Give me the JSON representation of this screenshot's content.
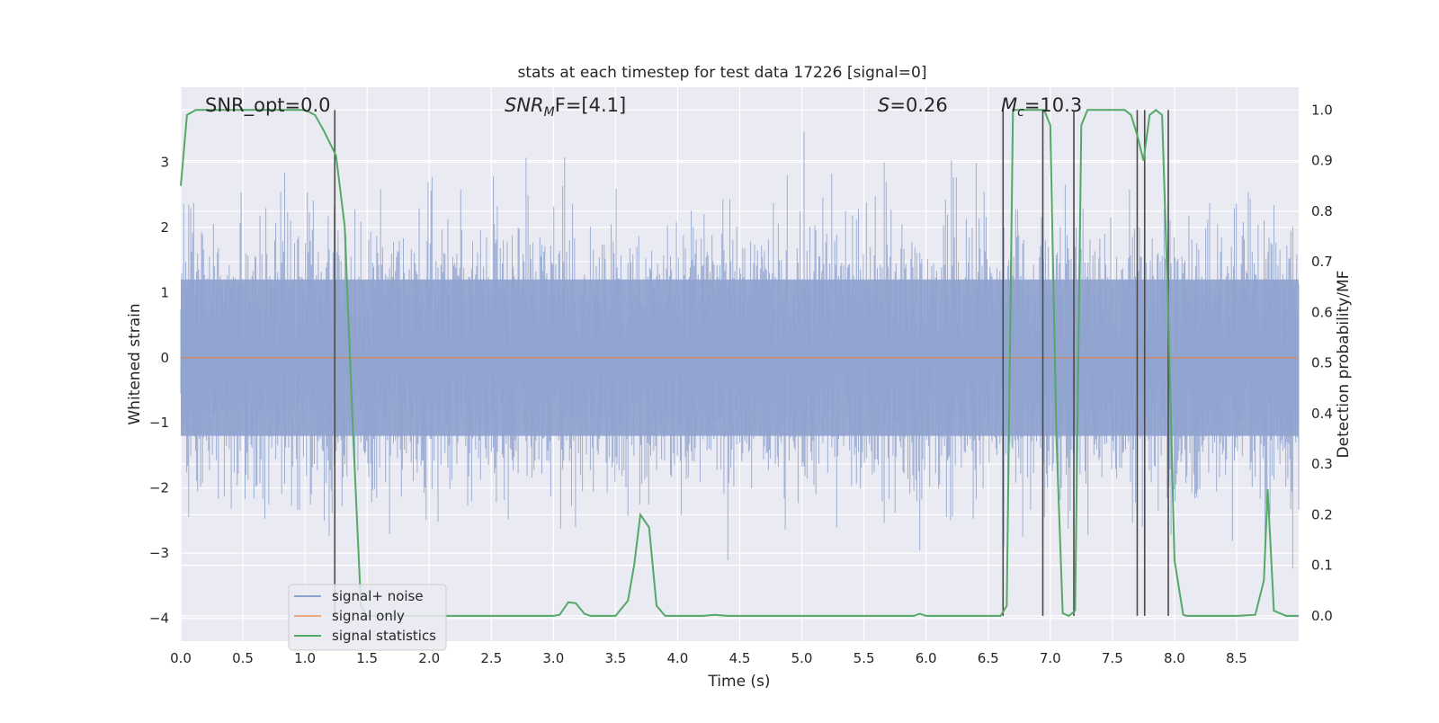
{
  "chart_data": {
    "type": "line",
    "title": "stats at each timestep for test data 17226 [signal=0]",
    "xlabel": "Time (s)",
    "ylabel": "Whitened strain",
    "ylabel_right": "Detection probability/MF",
    "xlim": [
      0.0,
      9.0
    ],
    "ylim": [
      -4.35,
      4.15
    ],
    "ylim_right": [
      -0.05,
      1.045
    ],
    "grid": true,
    "legend_placement": "lower-left",
    "x_ticks": [
      "0.0",
      "0.5",
      "1.0",
      "1.5",
      "2.0",
      "2.5",
      "3.0",
      "3.5",
      "4.0",
      "4.5",
      "5.0",
      "5.5",
      "6.0",
      "6.5",
      "7.0",
      "7.5",
      "8.0",
      "8.5"
    ],
    "y_ticks": [
      "3",
      "2",
      "1",
      "0",
      "−1",
      "−2",
      "−3",
      "−4"
    ],
    "y_right_ticks": [
      "1.0",
      "0.9",
      "0.8",
      "0.7",
      "0.6",
      "0.5",
      "0.4",
      "0.3",
      "0.2",
      "0.1",
      "0.0"
    ],
    "annotations": {
      "snr_opt": "SNR_opt=0.0",
      "snr_mf_main": "SNR",
      "snr_mf_sub": "M",
      "snr_mf_rest": "F=[4.1]",
      "s_main": "S",
      "s_rest": "=0.26",
      "mc_main": "M",
      "mc_sub": "c",
      "mc_rest": "=10.3"
    },
    "series": [
      {
        "name": "signal+ noise",
        "color": "#8fa3cf",
        "description_range": [
          -4.0,
          3.6
        ]
      },
      {
        "name": "signal only",
        "color": "#dd8452",
        "x": [
          0.0,
          9.0
        ],
        "y": [
          0.0,
          0.0
        ]
      },
      {
        "name": "signal statistics",
        "color": "#55a868",
        "axis": "right",
        "x": [
          0.0,
          0.05,
          0.12,
          0.2,
          0.4,
          0.6,
          0.8,
          1.0,
          1.08,
          1.15,
          1.25,
          1.32,
          1.38,
          1.45,
          1.5,
          2.0,
          2.5,
          3.0,
          3.05,
          3.12,
          3.18,
          3.25,
          3.3,
          3.4,
          3.5,
          3.6,
          3.65,
          3.7,
          3.77,
          3.83,
          3.9,
          4.0,
          4.2,
          4.3,
          4.4,
          5.0,
          5.5,
          5.9,
          5.95,
          6.0,
          6.5,
          6.6,
          6.65,
          6.7,
          6.75,
          6.8,
          6.85,
          6.95,
          7.0,
          7.05,
          7.1,
          7.15,
          7.2,
          7.25,
          7.3,
          7.4,
          7.5,
          7.6,
          7.65,
          7.7,
          7.75,
          7.8,
          7.85,
          7.9,
          7.95,
          8.0,
          8.07,
          8.1,
          8.2,
          8.5,
          8.65,
          8.72,
          8.75,
          8.8,
          8.9,
          9.0
        ],
        "y": [
          0.85,
          0.99,
          1.0,
          1.0,
          1.0,
          1.0,
          1.0,
          1.0,
          0.99,
          0.96,
          0.91,
          0.77,
          0.4,
          0.02,
          0.0,
          0.0,
          0.0,
          0.0,
          0.002,
          0.027,
          0.025,
          0.004,
          0.0,
          0.0,
          0.0,
          0.03,
          0.1,
          0.2,
          0.175,
          0.02,
          0.0,
          0.0,
          0.0,
          0.002,
          0.0,
          0.0,
          0.0,
          0.0,
          0.004,
          0.0,
          0.0,
          0.0,
          0.02,
          1.0,
          1.0,
          1.0,
          1.0,
          1.0,
          0.97,
          0.35,
          0.005,
          0.0,
          0.01,
          0.97,
          1.0,
          1.0,
          1.0,
          1.0,
          0.99,
          0.95,
          0.9,
          0.99,
          1.0,
          0.99,
          0.6,
          0.11,
          0.002,
          0.0,
          0.0,
          0.0,
          0.002,
          0.07,
          0.25,
          0.01,
          0.0,
          0.0
        ]
      }
    ],
    "vertical_markers_x": [
      1.24,
      6.62,
      6.94,
      7.19,
      7.7,
      7.76,
      7.95
    ]
  }
}
